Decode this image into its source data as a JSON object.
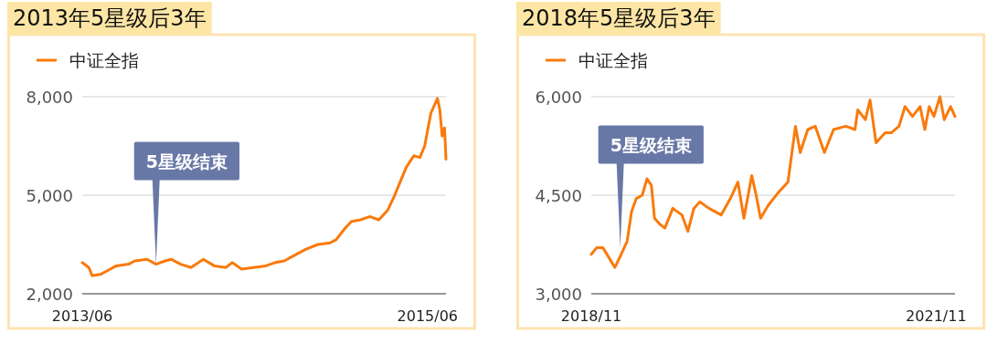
{
  "chart_data": [
    {
      "type": "line",
      "title": "2013年5星级后3年",
      "legend": "top left",
      "grid": "y",
      "line_style": "solid",
      "x": [
        "2013-06-01",
        "2013-06-15",
        "2013-06-22",
        "2013-07-11",
        "2013-07-24",
        "2013-08-12",
        "2013-09-07",
        "2013-09-20",
        "2013-10-16",
        "2013-11-04",
        "2013-11-23",
        "2013-12-06",
        "2013-12-26",
        "2014-01-17",
        "2014-02-12",
        "2014-03-07",
        "2014-04-01",
        "2014-04-14",
        "2014-05-04",
        "2014-05-29",
        "2014-06-24",
        "2014-07-14",
        "2014-08-02",
        "2014-08-21",
        "2014-09-16",
        "2014-10-12",
        "2014-11-07",
        "2014-11-20",
        "2014-12-09",
        "2014-12-22",
        "2015-01-10",
        "2015-01-30",
        "2015-02-18",
        "2015-03-09",
        "2015-03-22",
        "2015-04-04",
        "2015-04-17",
        "2015-05-03",
        "2015-05-16",
        "2015-05-26",
        "2015-06-08",
        "2015-06-22",
        "2015-06-27",
        "2015-07-02",
        "2015-07-07",
        "2015-07-10"
      ],
      "series": [
        {
          "name": "中证全指",
          "color": "#f97a0c",
          "values": [
            2950,
            2800,
            2550,
            2600,
            2700,
            2850,
            2900,
            3000,
            3050,
            2900,
            3000,
            3050,
            2900,
            2800,
            3050,
            2850,
            2800,
            2950,
            2750,
            2800,
            2850,
            2950,
            3000,
            3150,
            3350,
            3500,
            3550,
            3650,
            4000,
            4200,
            4250,
            4350,
            4250,
            4550,
            4950,
            5400,
            5850,
            6200,
            6150,
            6500,
            7500,
            7950,
            7600,
            6800,
            7050,
            6100
          ]
        }
      ],
      "xlim": [
        "2013-06-01",
        "2015-07-10"
      ],
      "xticks": [
        {
          "value": "2013-06-01",
          "label": "2013/06"
        },
        {
          "value": "2015-06-01",
          "label": "2015/06"
        }
      ],
      "ylim": [
        2000,
        8000
      ],
      "yticks": [
        {
          "value": 2000,
          "label": "2,000"
        },
        {
          "value": 5000,
          "label": "5,000"
        },
        {
          "value": 8000,
          "label": "8,000"
        }
      ],
      "annotations": [
        {
          "text": "5星级结束",
          "x": "2013-11-04",
          "y": 2900
        }
      ]
    },
    {
      "type": "line",
      "title": "2018年5星级后3年",
      "legend": "top left",
      "grid": "y",
      "line_style": "solid",
      "x": [
        "2018-11-01",
        "2018-11-18",
        "2018-12-08",
        "2018-12-27",
        "2019-01-15",
        "2019-02-04",
        "2019-02-23",
        "2019-03-09",
        "2019-03-24",
        "2019-04-12",
        "2019-04-27",
        "2019-05-11",
        "2019-05-21",
        "2019-06-09",
        "2019-06-23",
        "2019-07-18",
        "2019-08-16",
        "2019-09-04",
        "2019-09-23",
        "2019-10-12",
        "2019-11-10",
        "2019-12-19",
        "2020-01-17",
        "2020-02-10",
        "2020-02-29",
        "2020-03-25",
        "2020-04-08",
        "2020-04-22",
        "2020-05-17",
        "2020-06-19",
        "2020-07-18",
        "2020-08-11",
        "2020-08-26",
        "2020-09-19",
        "2020-10-13",
        "2020-11-11",
        "2020-12-10",
        "2021-01-18",
        "2021-02-16",
        "2021-02-25",
        "2021-03-21",
        "2021-04-05",
        "2021-04-24",
        "2021-05-23",
        "2021-06-11",
        "2021-07-06",
        "2021-07-25",
        "2021-08-18",
        "2021-09-11",
        "2021-09-26",
        "2021-10-10",
        "2021-10-25",
        "2021-11-13",
        "2021-11-27",
        "2021-12-17",
        "2021-12-31"
      ],
      "series": [
        {
          "name": "中证全指",
          "color": "#f97a0c",
          "values": [
            3600,
            3700,
            3700,
            3550,
            3400,
            3600,
            3800,
            4250,
            4450,
            4500,
            4750,
            4650,
            4150,
            4050,
            4000,
            4300,
            4200,
            3950,
            4300,
            4400,
            4300,
            4200,
            4450,
            4700,
            4150,
            4800,
            4500,
            4150,
            4350,
            4550,
            4700,
            5550,
            5150,
            5500,
            5550,
            5150,
            5500,
            5550,
            5500,
            5800,
            5650,
            5950,
            5300,
            5450,
            5450,
            5550,
            5850,
            5700,
            5850,
            5500,
            5850,
            5700,
            6000,
            5650,
            5850,
            5700
          ]
        }
      ],
      "xlim": [
        "2018-11-01",
        "2021-12-31"
      ],
      "xticks": [
        {
          "value": "2018-11-01",
          "label": "2018/11"
        },
        {
          "value": "2021-11-01",
          "label": "2021/11"
        }
      ],
      "ylim": [
        3000,
        6000
      ],
      "yticks": [
        {
          "value": 3000,
          "label": "3,000"
        },
        {
          "value": 4500,
          "label": "4,500"
        },
        {
          "value": 6000,
          "label": "6,000"
        }
      ],
      "annotations": [
        {
          "text": "5星级结束",
          "x": "2019-02-01",
          "y": 3700
        }
      ]
    }
  ]
}
